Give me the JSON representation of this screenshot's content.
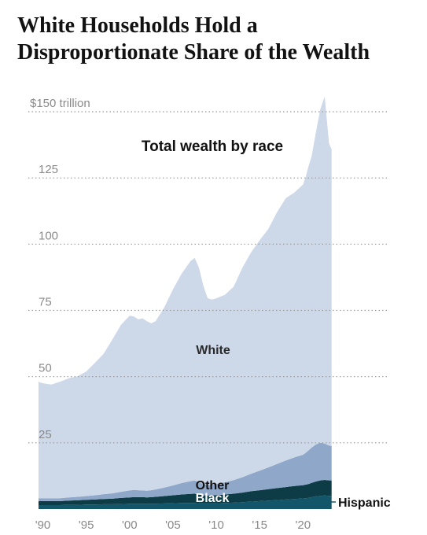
{
  "headline": "White Households Hold a Disproportionate Share of the Wealth",
  "chart_data": {
    "type": "area",
    "stacked": true,
    "title": "Total wealth by race",
    "xlabel": "",
    "ylabel": "",
    "y_unit_label": "$150 trillion",
    "ylim": [
      0,
      150
    ],
    "xlim": [
      1989.5,
      2023.6
    ],
    "y_ticks": [
      {
        "value": 150,
        "label": "$150 trillion"
      },
      {
        "value": 125,
        "label": "125"
      },
      {
        "value": 100,
        "label": "100"
      },
      {
        "value": 75,
        "label": "75"
      },
      {
        "value": 50,
        "label": "50"
      },
      {
        "value": 25,
        "label": "25"
      }
    ],
    "x_ticks": [
      {
        "value": 1990,
        "label": "'90"
      },
      {
        "value": 1995,
        "label": "'95"
      },
      {
        "value": 2000,
        "label": "'00"
      },
      {
        "value": 2005,
        "label": "'05"
      },
      {
        "value": 2010,
        "label": "'10"
      },
      {
        "value": 2015,
        "label": "'15"
      },
      {
        "value": 2020,
        "label": "'20"
      }
    ],
    "grid": "horizontal dotted",
    "x": [
      1989.5,
      1990,
      1991,
      1992,
      1993,
      1994,
      1995,
      1996,
      1997,
      1998,
      1999,
      2000,
      2000.5,
      2001,
      2001.5,
      2002,
      2002.5,
      2003,
      2004,
      2005,
      2006,
      2007,
      2007.5,
      2008,
      2008.5,
      2009,
      2009.5,
      2010,
      2011,
      2012,
      2013,
      2014,
      2015,
      2016,
      2017,
      2018,
      2018.5,
      2019,
      2020,
      2020.3,
      2020.6,
      2021,
      2021.5,
      2022,
      2022.5,
      2023,
      2023.3
    ],
    "series": [
      {
        "name": "Hispanic",
        "color": "#145669",
        "values": [
          1.5,
          1.5,
          1.5,
          1.5,
          1.6,
          1.6,
          1.7,
          1.7,
          1.8,
          1.8,
          1.9,
          2.0,
          2.0,
          2.0,
          2.0,
          2.0,
          2.0,
          2.0,
          2.1,
          2.2,
          2.3,
          2.3,
          2.3,
          2.2,
          2.1,
          2.1,
          2.1,
          2.2,
          2.3,
          2.4,
          2.6,
          2.8,
          3.0,
          3.2,
          3.4,
          3.6,
          3.7,
          3.8,
          4.0,
          4.1,
          4.2,
          4.5,
          4.8,
          5.0,
          5.1,
          5.0,
          5.0
        ]
      },
      {
        "name": "Black",
        "color": "#0d3b46",
        "values": [
          1.5,
          1.5,
          1.5,
          1.5,
          1.6,
          1.7,
          1.8,
          1.9,
          2.0,
          2.1,
          2.3,
          2.4,
          2.5,
          2.5,
          2.5,
          2.4,
          2.5,
          2.6,
          2.8,
          3.0,
          3.2,
          3.4,
          3.5,
          3.3,
          3.1,
          3.0,
          3.0,
          3.1,
          3.2,
          3.4,
          3.6,
          3.9,
          4.1,
          4.3,
          4.5,
          4.7,
          4.8,
          4.9,
          5.0,
          5.1,
          5.2,
          5.4,
          5.6,
          5.8,
          5.9,
          5.8,
          5.8
        ]
      },
      {
        "name": "Other",
        "color": "#8fa7c9",
        "values": [
          1.0,
          1.0,
          1.0,
          1.1,
          1.2,
          1.3,
          1.4,
          1.6,
          1.8,
          2.0,
          2.3,
          2.6,
          2.7,
          2.6,
          2.5,
          2.5,
          2.6,
          2.8,
          3.2,
          3.7,
          4.3,
          4.8,
          5.0,
          4.6,
          4.2,
          4.0,
          4.0,
          4.2,
          4.6,
          5.1,
          5.8,
          6.6,
          7.4,
          8.2,
          9.1,
          10.0,
          10.4,
          10.8,
          11.5,
          12.0,
          12.6,
          13.3,
          14.0,
          14.2,
          13.7,
          13.2,
          13.0
        ]
      },
      {
        "name": "White",
        "color": "#cdd8e8",
        "values": [
          44,
          43.5,
          43,
          44,
          45,
          45.5,
          47,
          50,
          53,
          58,
          63,
          66,
          65.5,
          64.5,
          65,
          64,
          63,
          63.5,
          68,
          74,
          79,
          83,
          84,
          81,
          75,
          70.5,
          70,
          70,
          70.8,
          73,
          79,
          83.5,
          87,
          90,
          95,
          99,
          99.5,
          100,
          102,
          104,
          107,
          110,
          118,
          126,
          131,
          114,
          112
        ]
      }
    ]
  },
  "colors": {
    "background": "#ffffff",
    "title_text": "#121212",
    "axis_text": "#8a8a8a",
    "gridline": "#9a9a9a"
  }
}
